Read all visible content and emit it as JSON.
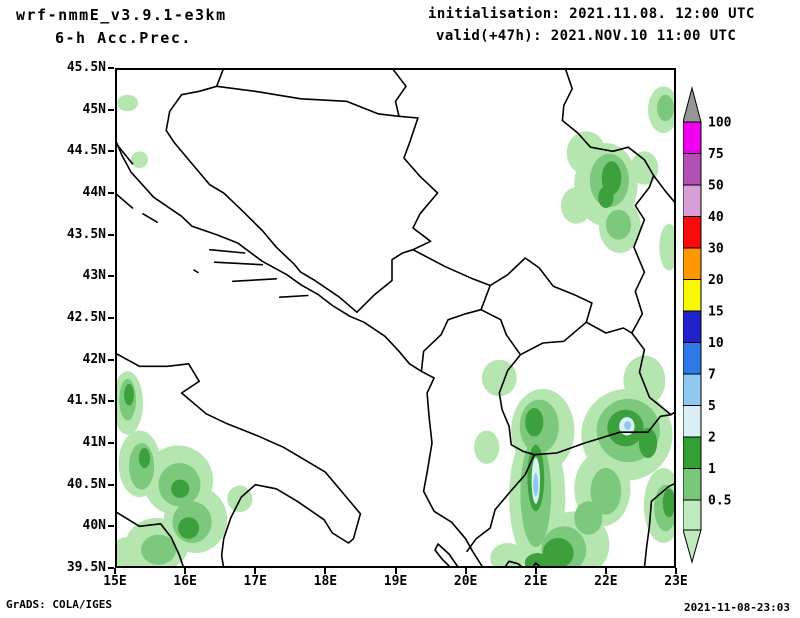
{
  "header": {
    "model": "wrf-nmmE_v3.9.1-e3km",
    "product": "6-h Acc.Prec.",
    "init_line": "initialisation: 2021.11.08.  12:00 UTC",
    "valid_line": "valid(+47h): 2021.NOV.10 11:00 UTC"
  },
  "footer": {
    "credit": "GrADS: COLA/IGES",
    "timestamp": "2021-11-08-23:03"
  },
  "axes": {
    "lat_ticks": [
      "45.5N",
      "45N",
      "44.5N",
      "44N",
      "43.5N",
      "43N",
      "42.5N",
      "42N",
      "41.5N",
      "41N",
      "40.5N",
      "40N",
      "39.5N"
    ],
    "lon_ticks": [
      "15E",
      "16E",
      "17E",
      "18E",
      "19E",
      "20E",
      "21E",
      "22E",
      "23E"
    ]
  },
  "colorbar": {
    "levels": [
      "100",
      "75",
      "50",
      "40",
      "30",
      "20",
      "15",
      "10",
      "7",
      "5",
      "2",
      "1",
      "0.5"
    ],
    "colors": [
      "#969696",
      "#F000F0",
      "#B450B4",
      "#D8A0D8",
      "#FA0A0A",
      "#FF9800",
      "#F8F800",
      "#2222CC",
      "#2E78E8",
      "#8FC8F0",
      "#D8F0F5",
      "#32A032",
      "#78C878",
      "#BEEABE"
    ]
  },
  "precip": {
    "palette": {
      "l1": "#B6E6B0",
      "l2": "#7CC87C",
      "l3": "#3CA03C",
      "c": "#D8F2F0",
      "b": "#8CC8F0"
    },
    "patches": [
      [
        "l1",
        15.18,
        41.48,
        0.22,
        0.38
      ],
      [
        "l1",
        15.35,
        40.75,
        0.3,
        0.4
      ],
      [
        "l1",
        15.9,
        40.55,
        0.5,
        0.42
      ],
      [
        "l1",
        16.15,
        40.08,
        0.45,
        0.4
      ],
      [
        "l1",
        15.6,
        39.78,
        0.45,
        0.32
      ],
      [
        "l1",
        15.15,
        39.62,
        0.22,
        0.25
      ],
      [
        "l1",
        16.78,
        40.33,
        0.18,
        0.16
      ],
      [
        "l1",
        15.35,
        44.4,
        0.12,
        0.1
      ],
      [
        "l1",
        15.18,
        45.08,
        0.15,
        0.1
      ],
      [
        "l1",
        21.02,
        40.35,
        0.4,
        0.85
      ],
      [
        "l1",
        21.1,
        41.15,
        0.45,
        0.5
      ],
      [
        "l1",
        21.55,
        39.78,
        0.5,
        0.4
      ],
      [
        "l1",
        22.3,
        41.1,
        0.65,
        0.55
      ],
      [
        "l1",
        22.82,
        40.25,
        0.28,
        0.45
      ],
      [
        "l1",
        20.48,
        41.78,
        0.25,
        0.22
      ],
      [
        "l1",
        21.95,
        40.45,
        0.4,
        0.45
      ],
      [
        "l1",
        22.55,
        41.75,
        0.3,
        0.3
      ],
      [
        "l1",
        20.6,
        39.62,
        0.25,
        0.18
      ],
      [
        "l1",
        20.3,
        40.95,
        0.18,
        0.2
      ],
      [
        "l1",
        22.0,
        44.1,
        0.45,
        0.5
      ],
      [
        "l1",
        22.2,
        43.6,
        0.3,
        0.32
      ],
      [
        "l1",
        21.72,
        44.48,
        0.28,
        0.26
      ],
      [
        "l1",
        22.9,
        43.35,
        0.14,
        0.28
      ],
      [
        "l1",
        22.82,
        45.0,
        0.22,
        0.28
      ],
      [
        "l1",
        21.58,
        43.85,
        0.22,
        0.22
      ],
      [
        "l1",
        22.55,
        44.3,
        0.2,
        0.2
      ],
      [
        "l2",
        15.18,
        41.52,
        0.12,
        0.25
      ],
      [
        "l2",
        15.38,
        40.72,
        0.18,
        0.28
      ],
      [
        "l2",
        15.92,
        40.5,
        0.3,
        0.26
      ],
      [
        "l2",
        16.1,
        40.05,
        0.28,
        0.25
      ],
      [
        "l2",
        15.62,
        39.72,
        0.25,
        0.18
      ],
      [
        "l2",
        21.0,
        40.4,
        0.22,
        0.65
      ],
      [
        "l2",
        21.4,
        39.72,
        0.32,
        0.28
      ],
      [
        "l2",
        21.05,
        41.2,
        0.28,
        0.32
      ],
      [
        "l2",
        22.32,
        41.15,
        0.45,
        0.38
      ],
      [
        "l2",
        22.0,
        40.42,
        0.22,
        0.28
      ],
      [
        "l2",
        22.85,
        40.22,
        0.16,
        0.28
      ],
      [
        "l2",
        21.75,
        40.1,
        0.2,
        0.2
      ],
      [
        "l2",
        22.05,
        44.15,
        0.28,
        0.32
      ],
      [
        "l2",
        22.18,
        43.62,
        0.18,
        0.18
      ],
      [
        "l2",
        22.85,
        45.02,
        0.12,
        0.16
      ],
      [
        "l3",
        15.2,
        41.58,
        0.07,
        0.13
      ],
      [
        "l3",
        15.93,
        40.45,
        0.13,
        0.11
      ],
      [
        "l3",
        16.05,
        39.98,
        0.15,
        0.13
      ],
      [
        "l3",
        15.42,
        40.82,
        0.08,
        0.12
      ],
      [
        "l3",
        21.0,
        40.58,
        0.12,
        0.4
      ],
      [
        "l3",
        21.32,
        39.68,
        0.22,
        0.18
      ],
      [
        "l3",
        21.02,
        39.55,
        0.18,
        0.13
      ],
      [
        "l3",
        22.28,
        41.18,
        0.26,
        0.22
      ],
      [
        "l3",
        22.6,
        41.0,
        0.13,
        0.18
      ],
      [
        "l3",
        20.98,
        41.25,
        0.13,
        0.17
      ],
      [
        "l3",
        22.9,
        40.28,
        0.09,
        0.17
      ],
      [
        "l3",
        22.08,
        44.18,
        0.14,
        0.2
      ],
      [
        "l3",
        22.0,
        43.95,
        0.11,
        0.13
      ],
      [
        "c",
        21.0,
        40.55,
        0.06,
        0.28
      ],
      [
        "c",
        22.3,
        41.2,
        0.11,
        0.11
      ],
      [
        "b",
        21.0,
        40.5,
        0.035,
        0.14
      ],
      [
        "b",
        22.31,
        41.21,
        0.05,
        0.05
      ]
    ]
  },
  "chart_data": {
    "type": "heatmap",
    "title": "wrf-nmmE_v3.9.1-e3km 6-h Acc.Prec.",
    "initialisation": "2021.11.08. 12:00 UTC",
    "valid": "(+47h) 2021.NOV.10 11:00 UTC",
    "xlabel": "longitude",
    "ylabel": "latitude",
    "xlim": [
      15,
      23
    ],
    "ylim": [
      39.5,
      45.5
    ],
    "x_ticks": [
      "15E",
      "16E",
      "17E",
      "18E",
      "19E",
      "20E",
      "21E",
      "22E",
      "23E"
    ],
    "y_ticks": [
      "39.5N",
      "40N",
      "40.5N",
      "41N",
      "41.5N",
      "42N",
      "42.5N",
      "43N",
      "43.5N",
      "44N",
      "44.5N",
      "45N",
      "45.5N"
    ],
    "colorbar_levels": [
      0.5,
      1,
      2,
      5,
      7,
      10,
      15,
      20,
      30,
      40,
      50,
      75,
      100
    ],
    "colorbar_colors_bottom_to_top": [
      "#BEEABE",
      "#78C878",
      "#32A032",
      "#D8F0F5",
      "#8FC8F0",
      "#2E78E8",
      "#2222CC",
      "#F8F800",
      "#FF9800",
      "#FA0A0A",
      "#D8A0D8",
      "#B450B4",
      "#F000F0",
      "#969696"
    ],
    "legend_position": "right",
    "grid": false,
    "notes": "Shaded 6-h accumulated precipitation over the Balkans/S Italy. Light-to-dark green areas (approx 0.5-5) over S Italy near 15-16.5E 39.5-41.7N; a large area over N Macedonia / N Greece / SW Bulgaria near 20.3-23E 39.5-41.7N with higher cores (5-10, small cyan/blue streaks) near 21E 40.5N and 22.3E 41.2N; another area over E Serbia / W Bulgaria near 21.5-23E 43.3-44.6N; small patches near 15.2E 45.1N, 22.8E 45.0N and 22.9E 43.3N."
  }
}
